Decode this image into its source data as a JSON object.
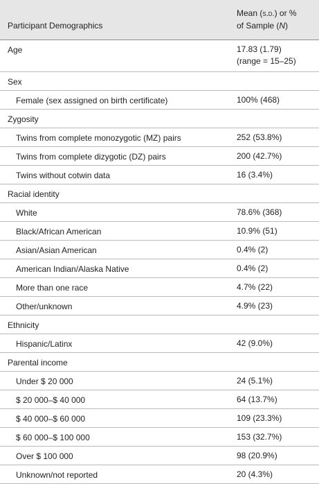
{
  "header": {
    "columns": [
      "Participant Demographics",
      [
        "Mean (",
        "s.d.",
        ") or %",
        "of Sample (",
        "N",
        ")"
      ]
    ]
  },
  "sections": [
    {
      "title": "Age",
      "value": [
        "17.83 (1.79)",
        "(range = 15–25)"
      ],
      "rows": []
    },
    {
      "title": "Sex",
      "rows": [
        {
          "label": "Female (sex assigned on birth certificate)",
          "value": "100% (468)"
        }
      ]
    },
    {
      "title": "Zygosity",
      "rows": [
        {
          "label": "Twins from complete monozygotic (MZ) pairs",
          "value": "252 (53.8%)"
        },
        {
          "label": "Twins from complete dizygotic (DZ) pairs",
          "value": "200 (42.7%)"
        },
        {
          "label": "Twins without cotwin data",
          "value": "16 (3.4%)"
        }
      ]
    },
    {
      "title": "Racial identity",
      "rows": [
        {
          "label": "White",
          "value": "78.6% (368)"
        },
        {
          "label": "Black/African American",
          "value": "10.9% (51)"
        },
        {
          "label": "Asian/Asian American",
          "value": "0.4% (2)"
        },
        {
          "label": "American Indian/Alaska Native",
          "value": "0.4% (2)"
        },
        {
          "label": "More than one race",
          "value": "4.7% (22)"
        },
        {
          "label": "Other/unknown",
          "value": "4.9% (23)"
        }
      ]
    },
    {
      "title": "Ethnicity",
      "rows": [
        {
          "label": "Hispanic/Latinx",
          "value": "42 (9.0%)"
        }
      ]
    },
    {
      "title": "Parental income",
      "rows": [
        {
          "label": "Under $ 20 000",
          "value": "24 (5.1%)"
        },
        {
          "label": "$ 20 000–$ 40 000",
          "value": "64 (13.7%)"
        },
        {
          "label": "$ 40 000–$ 60 000",
          "value": "109 (23.3%)"
        },
        {
          "label": "$ 60 000–$ 100 000",
          "value": "153 (32.7%)"
        },
        {
          "label": "Over $ 100 000",
          "value": "98 (20.9%)"
        },
        {
          "label": "Unknown/not reported",
          "value": "20 (4.3%)"
        }
      ]
    }
  ]
}
